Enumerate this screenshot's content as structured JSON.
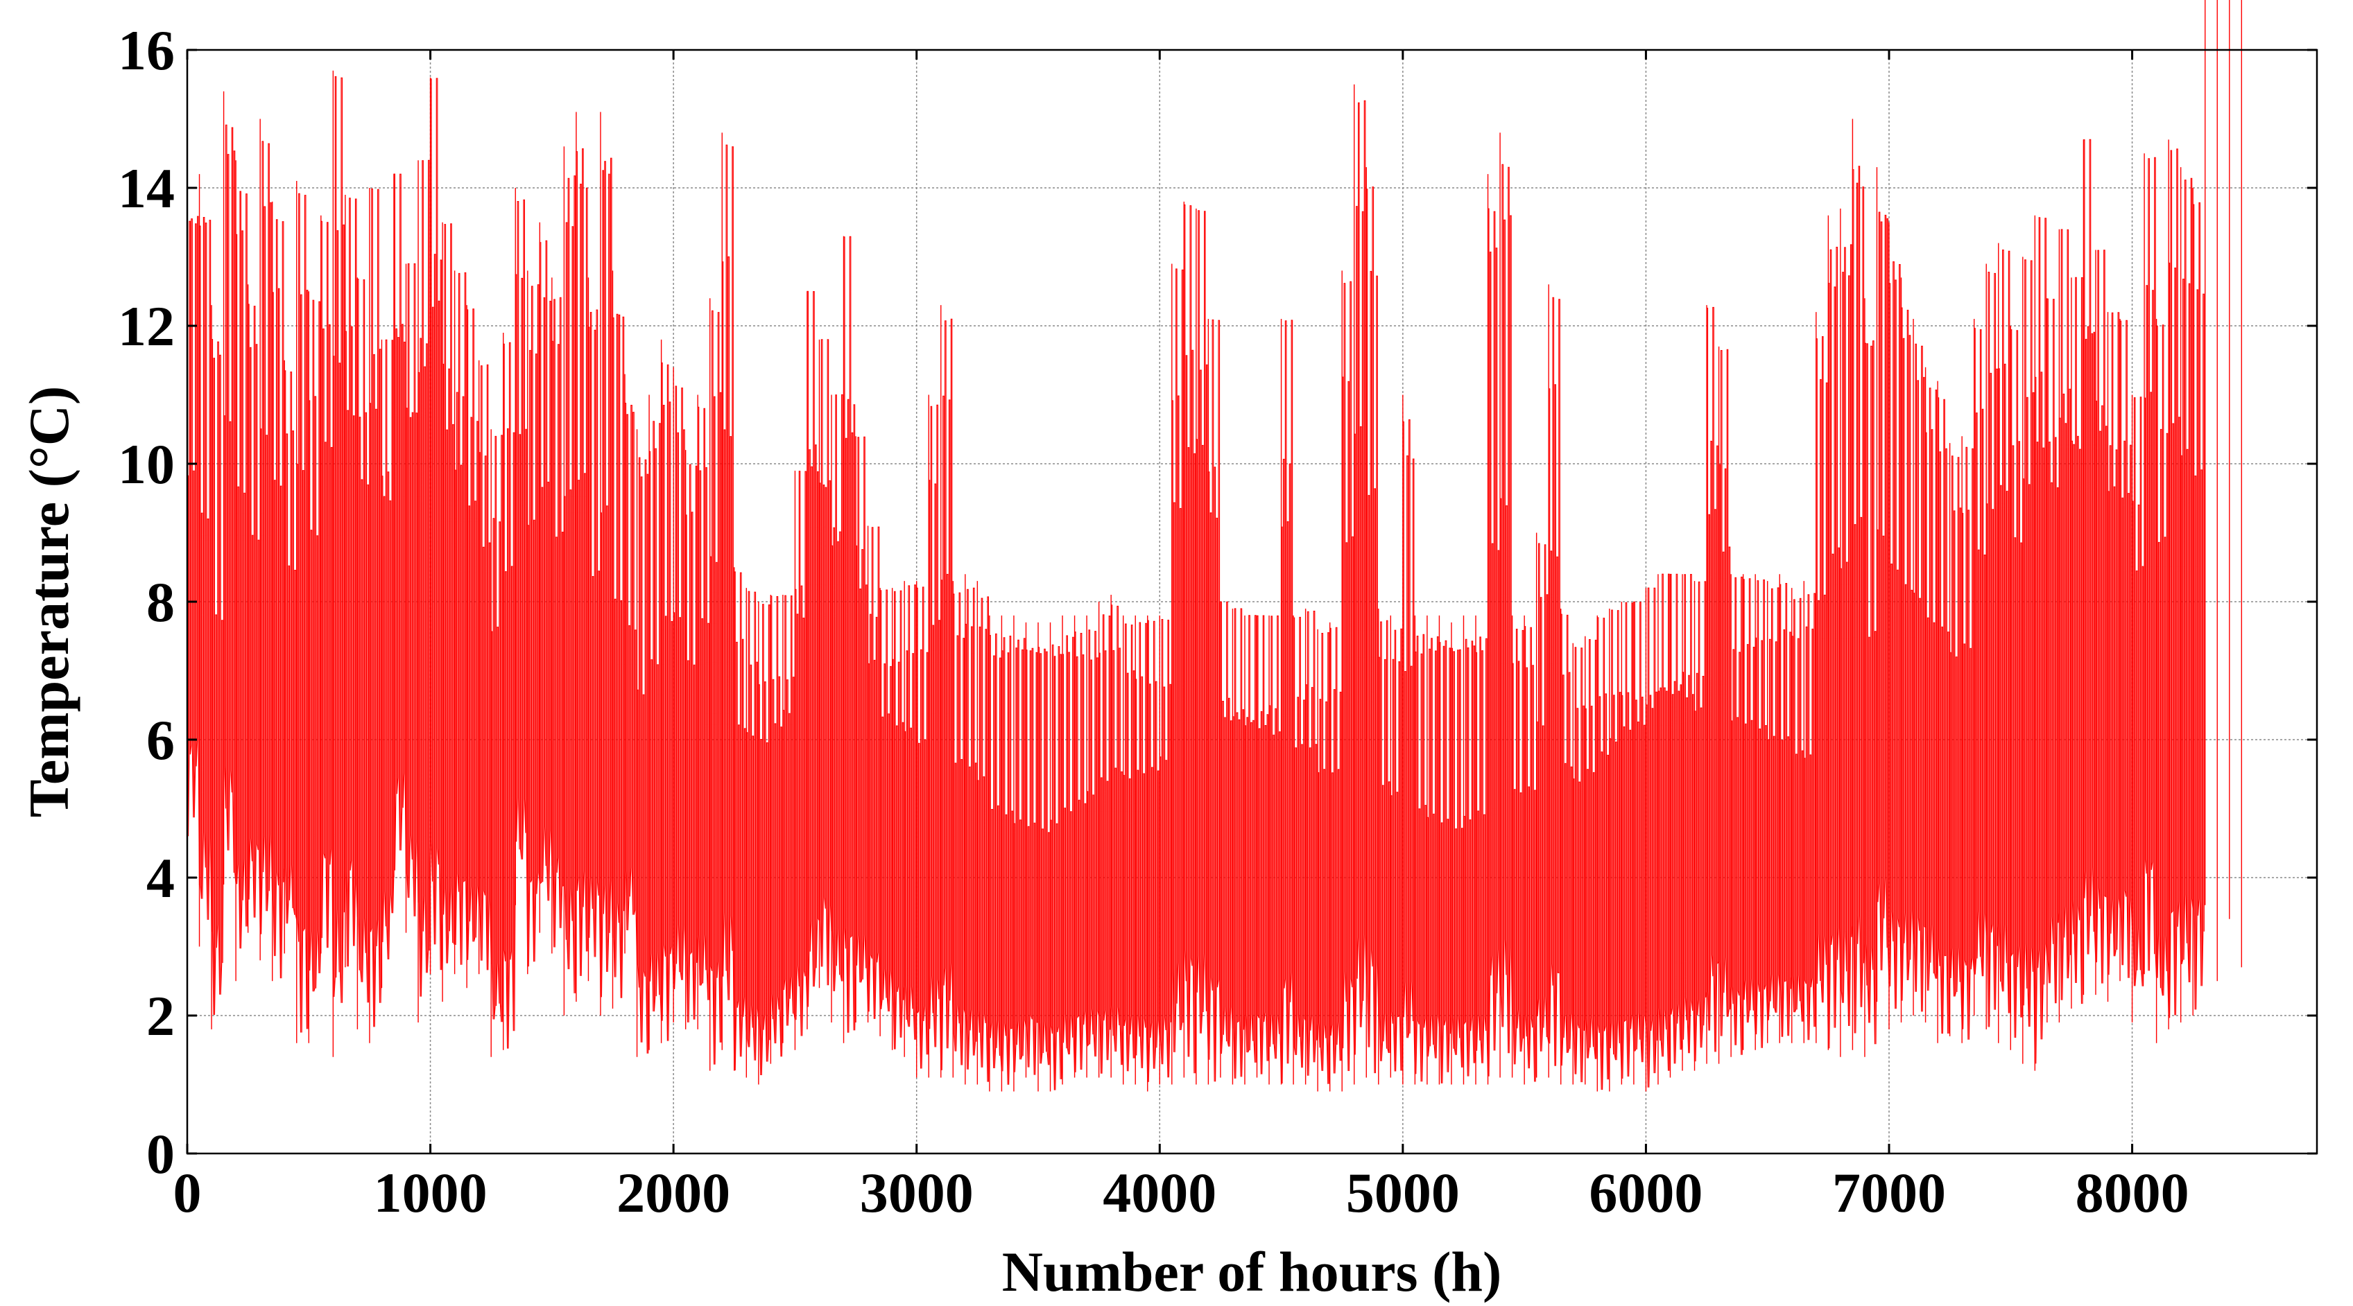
{
  "chart_data": {
    "type": "line",
    "title": "",
    "xlabel": "Number of hours (h)",
    "ylabel": "Temperature (°C)",
    "xlim": [
      0,
      8760
    ],
    "ylim": [
      0,
      16
    ],
    "xticks": [
      0,
      1000,
      2000,
      3000,
      4000,
      5000,
      6000,
      7000,
      8000
    ],
    "yticks": [
      0,
      2,
      4,
      6,
      8,
      10,
      12,
      14,
      16
    ],
    "xtick_labels": [
      "0",
      "1000",
      "2000",
      "3000",
      "4000",
      "5000",
      "6000",
      "7000",
      "8000"
    ],
    "ytick_labels": [
      "0",
      "2",
      "4",
      "6",
      "8",
      "10",
      "12",
      "14",
      "16"
    ],
    "grid": true,
    "legend": "none",
    "series": [
      {
        "color": "#ff0000",
        "x": [
          0,
          50,
          100,
          150,
          200,
          250,
          300,
          350,
          400,
          450,
          500,
          550,
          600,
          650,
          700,
          750,
          800,
          850,
          900,
          950,
          1000,
          1050,
          1100,
          1150,
          1200,
          1250,
          1300,
          1350,
          1400,
          1450,
          1500,
          1550,
          1600,
          1650,
          1700,
          1750,
          1800,
          1850,
          1900,
          1950,
          2000,
          2050,
          2100,
          2150,
          2200,
          2250,
          2300,
          2350,
          2400,
          2450,
          2500,
          2550,
          2600,
          2650,
          2700,
          2750,
          2800,
          2850,
          2900,
          2950,
          3000,
          3050,
          3100,
          3150,
          3200,
          3250,
          3300,
          3350,
          3400,
          3450,
          3500,
          3550,
          3600,
          3650,
          3700,
          3750,
          3800,
          3850,
          3900,
          3950,
          4000,
          4050,
          4100,
          4150,
          4200,
          4250,
          4300,
          4350,
          4400,
          4450,
          4500,
          4550,
          4600,
          4650,
          4700,
          4750,
          4800,
          4850,
          4900,
          4950,
          5000,
          5050,
          5100,
          5150,
          5200,
          5250,
          5300,
          5350,
          5400,
          5450,
          5500,
          5550,
          5600,
          5650,
          5700,
          5750,
          5800,
          5850,
          5900,
          5950,
          6000,
          6050,
          6100,
          6150,
          6200,
          6250,
          6300,
          6350,
          6400,
          6450,
          6500,
          6550,
          6600,
          6650,
          6700,
          6750,
          6800,
          6850,
          6900,
          6950,
          7000,
          7050,
          7100,
          7150,
          7200,
          7250,
          7300,
          7350,
          7400,
          7450,
          7500,
          7550,
          7600,
          7650,
          7700,
          7750,
          7800,
          7850,
          7900,
          7950,
          8000,
          8050,
          8100,
          8150,
          8200,
          8250,
          8300,
          8350,
          8400,
          8450,
          8500,
          8550,
          8600,
          8650,
          8700,
          8750
        ],
        "y_max": [
          14.1,
          14.2,
          12.3,
          15.4,
          14.4,
          12.6,
          15.0,
          13.8,
          11.5,
          14.1,
          12.5,
          13.6,
          15.7,
          13.9,
          12.7,
          14.0,
          11.8,
          14.2,
          12.9,
          14.4,
          15.6,
          13.5,
          12.8,
          12.3,
          11.5,
          10.5,
          11.9,
          14.0,
          12.8,
          13.5,
          12.7,
          14.6,
          15.1,
          12.7,
          15.1,
          12.8,
          11.3,
          10.5,
          11.0,
          11.8,
          11.4,
          10.2,
          11.0,
          12.4,
          14.8,
          8.5,
          8.2,
          8.0,
          8.1,
          8.1,
          9.9,
          12.5,
          11.8,
          11.0,
          13.3,
          10.4,
          9.1,
          8.2,
          8.2,
          8.3,
          8.3,
          11.0,
          12.3,
          8.3,
          8.4,
          8.3,
          7.8,
          7.8,
          7.8,
          7.7,
          7.7,
          7.7,
          7.8,
          7.8,
          7.8,
          8.0,
          8.1,
          7.8,
          7.8,
          7.8,
          7.8,
          12.9,
          13.8,
          13.7,
          12.1,
          8.0,
          7.9,
          7.8,
          7.8,
          7.8,
          12.1,
          7.8,
          7.9,
          7.6,
          7.7,
          12.8,
          15.5,
          14.3,
          7.9,
          7.8,
          11.0,
          7.8,
          7.8,
          7.8,
          7.7,
          7.8,
          7.8,
          14.2,
          14.8,
          7.8,
          7.8,
          9.0,
          12.6,
          7.9,
          7.4,
          7.5,
          7.8,
          7.9,
          8.0,
          8.0,
          8.2,
          8.4,
          8.4,
          8.4,
          8.3,
          12.3,
          11.7,
          8.4,
          8.4,
          8.4,
          8.3,
          8.4,
          8.2,
          8.3,
          12.2,
          13.6,
          13.7,
          15.0,
          12.4,
          14.3,
          13.5,
          12.7,
          12.1,
          11.4,
          11.2,
          10.3,
          10.4,
          12.1,
          12.9,
          13.2,
          12.0,
          13.0,
          13.6,
          12.4,
          13.4,
          12.7,
          14.7,
          13.1,
          12.2,
          12.1,
          11.0,
          14.5,
          12.1,
          14.7,
          14.3,
          14.0
        ],
        "y_min": [
          4.6,
          3.0,
          1.8,
          3.9,
          2.5,
          3.2,
          2.8,
          2.5,
          2.9,
          1.6,
          1.6,
          2.9,
          1.4,
          2.7,
          1.8,
          1.6,
          2.4,
          4.0,
          3.2,
          1.9,
          2.6,
          2.2,
          2.6,
          2.4,
          2.6,
          1.4,
          1.5,
          3.6,
          2.6,
          3.2,
          2.9,
          2.0,
          2.2,
          2.5,
          2.0,
          2.1,
          2.9,
          1.4,
          1.5,
          1.6,
          1.9,
          1.8,
          1.8,
          1.2,
          1.5,
          1.2,
          1.1,
          1.0,
          1.3,
          1.6,
          1.5,
          1.8,
          2.4,
          1.9,
          1.6,
          1.9,
          1.9,
          1.7,
          1.5,
          1.4,
          1.1,
          1.1,
          1.1,
          1.1,
          1.0,
          1.0,
          0.9,
          0.9,
          0.9,
          1.1,
          0.9,
          0.9,
          1.0,
          1.1,
          1.1,
          1.1,
          1.1,
          1.0,
          1.0,
          0.9,
          1.0,
          1.0,
          1.1,
          1.0,
          1.0,
          1.1,
          1.0,
          1.0,
          1.1,
          1.0,
          1.0,
          1.0,
          1.0,
          0.9,
          0.9,
          0.9,
          1.0,
          1.1,
          1.0,
          1.1,
          1.0,
          1.0,
          1.0,
          1.0,
          1.0,
          1.0,
          1.0,
          1.0,
          1.1,
          1.1,
          1.0,
          1.1,
          1.1,
          1.0,
          1.0,
          1.0,
          0.9,
          0.9,
          1.0,
          1.0,
          0.9,
          1.0,
          1.1,
          1.2,
          1.2,
          1.3,
          1.3,
          1.4,
          1.5,
          1.5,
          1.6,
          1.6,
          1.6,
          1.6,
          1.6,
          1.5,
          1.4,
          1.5,
          1.4,
          2.2,
          1.8,
          1.9,
          2.0,
          1.9,
          1.6,
          1.7,
          1.6,
          2.0,
          1.8,
          1.6,
          1.5,
          1.3,
          1.2,
          1.9,
          1.9,
          2.1,
          2.3,
          2.3,
          2.2,
          2.5,
          1.9,
          2.6,
          1.6,
          1.8,
          1.9,
          2.0,
          3.6,
          2.5,
          3.4,
          2.7
        ]
      }
    ]
  }
}
